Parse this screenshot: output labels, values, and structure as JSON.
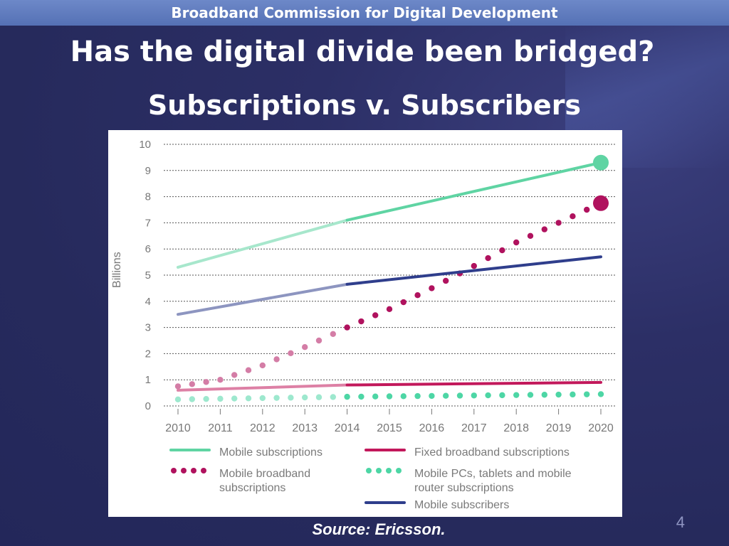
{
  "header": {
    "banner_text": "Broadband Commission for Digital Development"
  },
  "slide": {
    "title": "Has the digital divide been bridged?",
    "subtitle": "Subscriptions v. Subscribers",
    "source": "Source: Ericsson.",
    "page_number": "4"
  },
  "colors": {
    "slide_bg": "#262a5c",
    "banner": "#5f7bbf",
    "mobile_subscriptions": "#5fd4a3",
    "fixed_broadband": "#c2185b",
    "mobile_broadband": "#b0125e",
    "mobile_pcs": "#4dd6a5",
    "mobile_subscribers": "#2f3e8c"
  },
  "chart_data": {
    "type": "line",
    "ylabel": "Billions",
    "xlabel": "",
    "ylim": [
      0,
      10
    ],
    "yticks": [
      "0",
      "1",
      "2",
      "3",
      "4",
      "5",
      "6",
      "7",
      "8",
      "9",
      "10"
    ],
    "xtick_labels": [
      "2010",
      "2011",
      "2012",
      "2013",
      "2014",
      "2015",
      "2016",
      "2017",
      "2018",
      "2019",
      "2020"
    ],
    "forecast_from": 2014,
    "grid": "horizontal-dotted",
    "legend_position": "bottom",
    "series": [
      {
        "name": "Mobile subscriptions",
        "style": "solid",
        "x": [
          2010,
          2014,
          2020
        ],
        "y": [
          5.3,
          7.1,
          9.3
        ],
        "end_marker": true
      },
      {
        "name": "Fixed broadband subscriptions",
        "style": "solid",
        "x": [
          2010,
          2014,
          2020
        ],
        "y": [
          0.6,
          0.8,
          0.9
        ]
      },
      {
        "name": "Mobile broadband subscriptions",
        "style": "dotted",
        "x": [
          2010,
          2011,
          2012,
          2013,
          2014,
          2015,
          2016,
          2017,
          2018,
          2019,
          2020
        ],
        "y": [
          0.75,
          1.0,
          1.55,
          2.25,
          3.0,
          3.7,
          4.5,
          5.35,
          6.25,
          7.0,
          7.75
        ],
        "end_marker": true
      },
      {
        "name": "Mobile PCs, tablets and mobile router subscriptions",
        "style": "dotted",
        "x": [
          2010,
          2014,
          2020
        ],
        "y": [
          0.25,
          0.35,
          0.45
        ]
      },
      {
        "name": "Mobile subscribers",
        "style": "solid",
        "x": [
          2010,
          2014,
          2020
        ],
        "y": [
          3.5,
          4.65,
          5.7
        ]
      }
    ]
  },
  "legend": {
    "mobile_subscriptions": "Mobile subscriptions",
    "fixed_broadband": "Fixed broadband subscriptions",
    "mobile_broadband_l1": "Mobile broadband",
    "mobile_broadband_l2": "subscriptions",
    "mobile_pcs_l1": "Mobile PCs, tablets and mobile",
    "mobile_pcs_l2": "router  subscriptions",
    "mobile_subscribers": "Mobile subscribers"
  }
}
